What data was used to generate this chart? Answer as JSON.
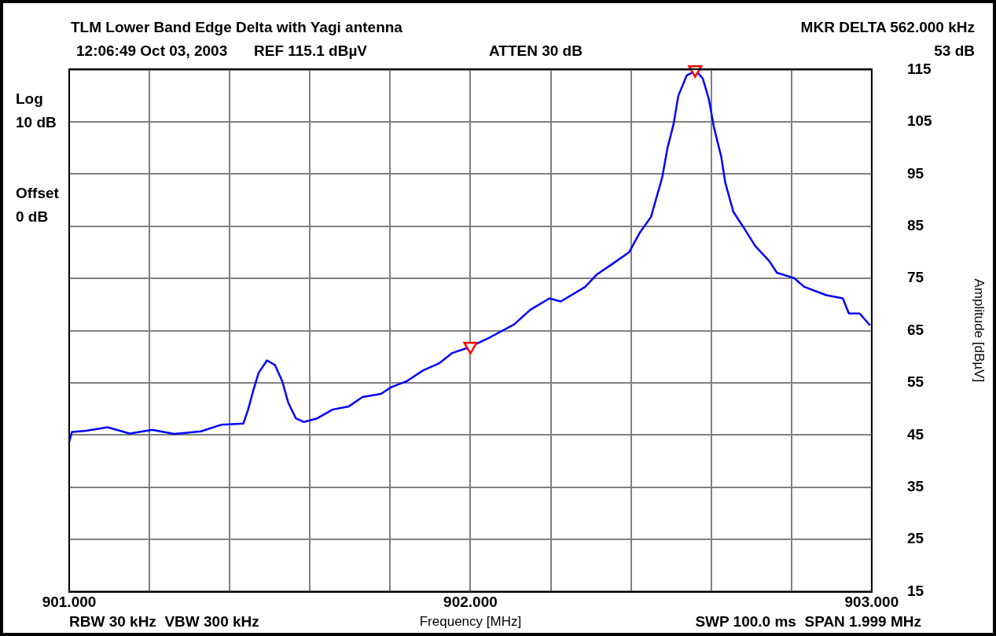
{
  "chart_data": {
    "type": "line",
    "title": "TLM Lower Band Edge Delta with Yagi antenna",
    "xlabel": "Frequency [MHz]",
    "ylabel": "Amplitude [dBµV]",
    "annotations": [
      "Log",
      "10 dB",
      "Offset",
      "0 dB",
      "MKR DELTA 562.000 kHz",
      "12:06:49 Oct 03, 2003",
      "REF 115.1 dBµV",
      "ATTEN 30 dB",
      "53 dB",
      "RBW 30 kHz  VBW 300 kHz",
      "SWP 100.0 ms  SPAN 1.999 MHz"
    ],
    "xlim": [
      901,
      903
    ],
    "xticks": [
      {
        "value": 901,
        "label": "901.000"
      },
      {
        "value": 901.2,
        "label": null
      },
      {
        "value": 901.4,
        "label": null
      },
      {
        "value": 901.6,
        "label": null
      },
      {
        "value": 901.8,
        "label": null
      },
      {
        "value": 902,
        "label": "902.000"
      },
      {
        "value": 902.2,
        "label": null
      },
      {
        "value": 902.4,
        "label": null
      },
      {
        "value": 902.6,
        "label": null
      },
      {
        "value": 902.8,
        "label": null
      },
      {
        "value": 903,
        "label": "903.000"
      }
    ],
    "ylim": [
      15,
      115.1
    ],
    "yticks": [
      15,
      25,
      35,
      45,
      55,
      65,
      75,
      85,
      95,
      105,
      115
    ],
    "grid": true,
    "marker": "none",
    "line_style": "solid",
    "series": [
      {
        "color": "#0000ff",
        "x": [
          901.0,
          901.007,
          901.041,
          901.096,
          901.151,
          901.207,
          901.262,
          901.328,
          901.38,
          901.434,
          901.446,
          901.459,
          901.472,
          901.493,
          901.513,
          901.531,
          901.546,
          901.565,
          901.585,
          901.618,
          901.657,
          901.697,
          901.731,
          901.777,
          901.803,
          901.841,
          901.882,
          901.921,
          901.954,
          901.993,
          902.048,
          902.109,
          902.149,
          902.197,
          902.225,
          902.286,
          902.314,
          902.354,
          902.395,
          902.423,
          902.45,
          902.478,
          902.491,
          902.506,
          902.518,
          902.539,
          902.563,
          902.579,
          902.594,
          902.607,
          902.625,
          902.635,
          902.655,
          902.683,
          902.71,
          902.744,
          902.764,
          902.806,
          902.832,
          902.887,
          902.928,
          902.943,
          902.97,
          902.996
        ],
        "values": [
          43.7,
          45.6,
          45.8,
          46.5,
          45.3,
          46.0,
          45.2,
          45.7,
          47.0,
          47.2,
          49.9,
          53.6,
          56.9,
          59.3,
          58.4,
          55.3,
          51.2,
          48.2,
          47.5,
          48.2,
          49.9,
          50.5,
          52.3,
          52.9,
          54.2,
          55.3,
          57.4,
          58.7,
          60.7,
          61.7,
          63.7,
          66.2,
          69.0,
          71.2,
          70.6,
          73.4,
          75.7,
          77.8,
          80.0,
          83.9,
          86.8,
          94.4,
          100.0,
          104.5,
          110.0,
          113.9,
          114.8,
          113.3,
          109.4,
          103.9,
          98.3,
          93.4,
          87.8,
          84.5,
          81.2,
          78.4,
          76.1,
          75.1,
          73.4,
          71.8,
          71.2,
          68.3,
          68.3,
          66.0
        ]
      },
      {
        "type": "scatter",
        "color": "#ff0000",
        "marker": "triangle",
        "x": [
          902.0,
          902.56
        ],
        "values": [
          62,
          115
        ]
      }
    ]
  }
}
